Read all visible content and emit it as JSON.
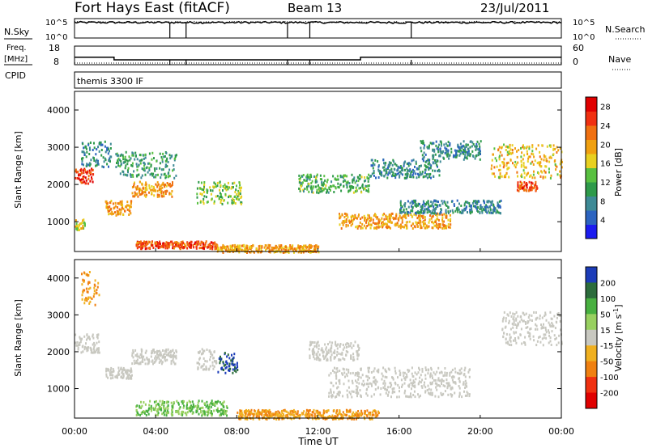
{
  "header": {
    "station": "Fort Hays East (fitACF)",
    "beam": "Beam 13",
    "date": "23/Jul/2011"
  },
  "noise_panel": {
    "left_label": "N.Sky",
    "right_label": "N.Search",
    "left_ticks": [
      "10^5",
      "10^0"
    ],
    "right_ticks": [
      "10^5",
      "10^0"
    ]
  },
  "freq_panel": {
    "left_label_line1": "Freq.",
    "left_label_line2": "[MHz]",
    "cpid_label": "CPID",
    "right_label": "Nave",
    "left_ticks": [
      "18",
      "8"
    ],
    "right_ticks": [
      "60",
      "0"
    ],
    "cpid_name": "themis 3300 IF"
  },
  "power_panel": {
    "ylabel": "Slant Range [km]",
    "yticks": [
      "1000",
      "2000",
      "3000",
      "4000"
    ],
    "colorbar_label": "Power [dB]",
    "colorbar_ticks": [
      "4",
      "8",
      "12",
      "16",
      "20",
      "24",
      "28"
    ]
  },
  "velocity_panel": {
    "ylabel": "Slant Range [km]",
    "yticks": [
      "1000",
      "2000",
      "3000",
      "4000"
    ],
    "colorbar_label": "Velocity [m s",
    "colorbar_label_exp": "-1",
    "colorbar_label_end": "]",
    "colorbar_ticks": [
      "200",
      "100",
      "50",
      "15",
      "-15",
      "-50",
      "-100",
      "-200"
    ]
  },
  "x_axis": {
    "label": "Time UT",
    "ticks": [
      "00:00",
      "04:00",
      "08:00",
      "12:00",
      "16:00",
      "20:00",
      "00:00"
    ]
  },
  "chart_data": [
    {
      "type": "line",
      "name": "noise",
      "x_range_hours": [
        0,
        24
      ],
      "series": [
        {
          "name": "N.Sky",
          "style": "solid",
          "typical_log10": 4.0
        },
        {
          "name": "N.Search",
          "style": "dotted",
          "typical_log10": 4.1
        }
      ],
      "drop_times_hours": [
        4.7,
        5.5,
        10.5,
        11.6,
        16.6
      ]
    },
    {
      "type": "line",
      "name": "frequency",
      "ylim": [
        8,
        18
      ],
      "x_range_hours": [
        0,
        24
      ],
      "series": [
        {
          "name": "Freq.",
          "unit": "MHz",
          "points": [
            [
              0,
              12
            ],
            [
              1.95,
              12
            ],
            [
              1.95,
              10.6
            ],
            [
              14.1,
              10.6
            ],
            [
              14.1,
              12
            ],
            [
              24,
              12
            ]
          ]
        },
        {
          "name": "Nave",
          "style": "dotted",
          "value": 8
        }
      ],
      "drop_times_hours": [
        4.7,
        5.5,
        10.5,
        11.6,
        16.6
      ]
    },
    {
      "type": "heatmap",
      "name": "power",
      "x_range_hours": [
        0,
        24
      ],
      "ylim": [
        200,
        4500
      ],
      "colorbar": {
        "min": 0,
        "max": 30,
        "colors": [
          "#1c1cf0",
          "#2c64c0",
          "#3e8a96",
          "#2e9a4a",
          "#58c040",
          "#e8d020",
          "#f0a010",
          "#f07010",
          "#f03010",
          "#e00000"
        ]
      },
      "blobs": [
        {
          "t": [
            0.0,
            0.9
          ],
          "r": [
            2050,
            2450
          ],
          "v": 26
        },
        {
          "t": [
            0.3,
            1.8
          ],
          "r": [
            2500,
            3200
          ],
          "v": 8
        },
        {
          "t": [
            1.5,
            2.8
          ],
          "r": [
            1200,
            1600
          ],
          "v": 20
        },
        {
          "t": [
            2.8,
            4.8
          ],
          "r": [
            1700,
            2100
          ],
          "v": 20
        },
        {
          "t": [
            2.0,
            5.0
          ],
          "r": [
            2200,
            2900
          ],
          "v": 10
        },
        {
          "t": [
            6.0,
            8.2
          ],
          "r": [
            1500,
            2100
          ],
          "v": 14
        },
        {
          "t": [
            3.0,
            7.0
          ],
          "r": [
            300,
            500
          ],
          "v": 24
        },
        {
          "t": [
            0.0,
            0.5
          ],
          "r": [
            800,
            1100
          ],
          "v": 16
        },
        {
          "t": [
            7.0,
            12.0
          ],
          "r": [
            200,
            400
          ],
          "v": 20
        },
        {
          "t": [
            13.0,
            18.5
          ],
          "r": [
            850,
            1250
          ],
          "v": 20
        },
        {
          "t": [
            16.0,
            21.0
          ],
          "r": [
            1250,
            1600
          ],
          "v": 8
        },
        {
          "t": [
            11.0,
            14.5
          ],
          "r": [
            1800,
            2300
          ],
          "v": 12
        },
        {
          "t": [
            14.5,
            18.0
          ],
          "r": [
            2200,
            2700
          ],
          "v": 8
        },
        {
          "t": [
            17.0,
            20.0
          ],
          "r": [
            2700,
            3200
          ],
          "v": 8
        },
        {
          "t": [
            20.5,
            24.0
          ],
          "r": [
            2200,
            3100
          ],
          "v": 18
        },
        {
          "t": [
            21.8,
            22.8
          ],
          "r": [
            1850,
            2100
          ],
          "v": 24
        }
      ]
    },
    {
      "type": "heatmap",
      "name": "velocity",
      "x_range_hours": [
        0,
        24
      ],
      "ylim": [
        200,
        4500
      ],
      "colorbar": {
        "levels": [
          200,
          100,
          50,
          15,
          -15,
          -50,
          -100,
          -200
        ],
        "colors": [
          "#1c3cb8",
          "#2c6c3c",
          "#48b040",
          "#98d060",
          "#c8c8c0",
          "#f0b020",
          "#f08010",
          "#f03010",
          "#e00000"
        ]
      },
      "blobs": [
        {
          "t": [
            0.0,
            1.2
          ],
          "r": [
            2000,
            2500
          ],
          "v": 0
        },
        {
          "t": [
            1.5,
            2.8
          ],
          "r": [
            1300,
            1600
          ],
          "v": 0
        },
        {
          "t": [
            2.8,
            5.0
          ],
          "r": [
            1700,
            2100
          ],
          "v": 0
        },
        {
          "t": [
            6.0,
            7.0
          ],
          "r": [
            1500,
            2100
          ],
          "v": 0
        },
        {
          "t": [
            7.0,
            8.0
          ],
          "r": [
            1450,
            2000
          ],
          "v": 200
        },
        {
          "t": [
            0.3,
            1.2
          ],
          "r": [
            3300,
            4200
          ],
          "v": -50
        },
        {
          "t": [
            3.0,
            7.5
          ],
          "r": [
            300,
            700
          ],
          "v": 50
        },
        {
          "t": [
            8.0,
            15.0
          ],
          "r": [
            200,
            450
          ],
          "v": -50
        },
        {
          "t": [
            12.5,
            19.5
          ],
          "r": [
            800,
            1600
          ],
          "v": 0
        },
        {
          "t": [
            21.0,
            24.0
          ],
          "r": [
            2200,
            3100
          ],
          "v": 0
        },
        {
          "t": [
            11.5,
            14.0
          ],
          "r": [
            1800,
            2300
          ],
          "v": 0
        }
      ]
    }
  ]
}
